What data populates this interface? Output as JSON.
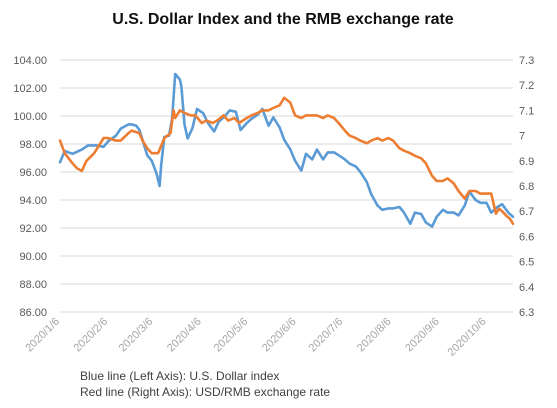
{
  "chart_data": {
    "type": "line",
    "title": "U.S. Dollar Index and the RMB exchange rate",
    "left_axis": {
      "min": 86,
      "max": 104,
      "step": 2,
      "tick_labels": [
        "86.00",
        "88.00",
        "90.00",
        "92.00",
        "94.00",
        "96.00",
        "98.00",
        "100.00",
        "102.00",
        "104.00"
      ]
    },
    "right_axis": {
      "min": 6.3,
      "max": 7.3,
      "step": 0.1,
      "tick_labels": [
        "6.3",
        "6.4",
        "6.5",
        "6.6",
        "6.7",
        "6.8",
        "6.9",
        "7",
        "7.1",
        "7.2",
        "7.3"
      ]
    },
    "x_axis": {
      "start": "2020-01-06",
      "end": "2020-10-23",
      "tick_dates": [
        "2020-01-06",
        "2020-02-06",
        "2020-03-06",
        "2020-04-06",
        "2020-05-06",
        "2020-06-06",
        "2020-07-06",
        "2020-08-06",
        "2020-09-06",
        "2020-10-06"
      ],
      "tick_labels": [
        "2020/1/6",
        "2020/2/6",
        "2020/3/6",
        "2020/4/6",
        "2020/5/6",
        "2020/6/6",
        "2020/7/6",
        "2020/8/6",
        "2020/9/6",
        "2020/10/6"
      ]
    },
    "grid": true,
    "series": [
      {
        "axis": "left",
        "color": "#5b9bd5",
        "points": [
          [
            "2020-01-06",
            96.7
          ],
          [
            "2020-01-09",
            97.5
          ],
          [
            "2020-01-14",
            97.3
          ],
          [
            "2020-01-20",
            97.6
          ],
          [
            "2020-01-24",
            97.9
          ],
          [
            "2020-01-29",
            97.9
          ],
          [
            "2020-02-03",
            97.8
          ],
          [
            "2020-02-06",
            98.2
          ],
          [
            "2020-02-11",
            98.6
          ],
          [
            "2020-02-14",
            99.1
          ],
          [
            "2020-02-19",
            99.4
          ],
          [
            "2020-02-21",
            99.4
          ],
          [
            "2020-02-24",
            99.3
          ],
          [
            "2020-02-26",
            99.0
          ],
          [
            "2020-02-28",
            98.3
          ],
          [
            "2020-03-02",
            97.2
          ],
          [
            "2020-03-05",
            96.8
          ],
          [
            "2020-03-08",
            95.9
          ],
          [
            "2020-03-10",
            95.0
          ],
          [
            "2020-03-11",
            96.5
          ],
          [
            "2020-03-13",
            98.5
          ],
          [
            "2020-03-16",
            98.6
          ],
          [
            "2020-03-18",
            99.8
          ],
          [
            "2020-03-20",
            103.0
          ],
          [
            "2020-03-23",
            102.6
          ],
          [
            "2020-03-24",
            102.1
          ],
          [
            "2020-03-26",
            99.4
          ],
          [
            "2020-03-28",
            98.4
          ],
          [
            "2020-03-31",
            99.1
          ],
          [
            "2020-04-03",
            100.5
          ],
          [
            "2020-04-07",
            100.2
          ],
          [
            "2020-04-10",
            99.5
          ],
          [
            "2020-04-14",
            98.9
          ],
          [
            "2020-04-17",
            99.6
          ],
          [
            "2020-04-21",
            100.0
          ],
          [
            "2020-04-24",
            100.4
          ],
          [
            "2020-04-28",
            100.3
          ],
          [
            "2020-05-01",
            99.0
          ],
          [
            "2020-05-05",
            99.5
          ],
          [
            "2020-05-08",
            99.8
          ],
          [
            "2020-05-12",
            100.1
          ],
          [
            "2020-05-15",
            100.5
          ],
          [
            "2020-05-19",
            99.3
          ],
          [
            "2020-05-22",
            99.9
          ],
          [
            "2020-05-26",
            99.2
          ],
          [
            "2020-05-29",
            98.3
          ],
          [
            "2020-06-02",
            97.6
          ],
          [
            "2020-06-05",
            96.8
          ],
          [
            "2020-06-09",
            96.1
          ],
          [
            "2020-06-12",
            97.3
          ],
          [
            "2020-06-16",
            96.9
          ],
          [
            "2020-06-19",
            97.6
          ],
          [
            "2020-06-23",
            96.9
          ],
          [
            "2020-06-26",
            97.4
          ],
          [
            "2020-06-30",
            97.4
          ],
          [
            "2020-07-03",
            97.2
          ],
          [
            "2020-07-07",
            96.9
          ],
          [
            "2020-07-10",
            96.6
          ],
          [
            "2020-07-14",
            96.4
          ],
          [
            "2020-07-17",
            96.0
          ],
          [
            "2020-07-21",
            95.3
          ],
          [
            "2020-07-24",
            94.4
          ],
          [
            "2020-07-28",
            93.6
          ],
          [
            "2020-07-31",
            93.3
          ],
          [
            "2020-08-04",
            93.4
          ],
          [
            "2020-08-07",
            93.4
          ],
          [
            "2020-08-11",
            93.5
          ],
          [
            "2020-08-14",
            93.1
          ],
          [
            "2020-08-18",
            92.3
          ],
          [
            "2020-08-21",
            93.1
          ],
          [
            "2020-08-25",
            93.0
          ],
          [
            "2020-08-28",
            92.4
          ],
          [
            "2020-09-01",
            92.1
          ],
          [
            "2020-09-04",
            92.8
          ],
          [
            "2020-09-08",
            93.3
          ],
          [
            "2020-09-11",
            93.1
          ],
          [
            "2020-09-15",
            93.1
          ],
          [
            "2020-09-18",
            92.9
          ],
          [
            "2020-09-22",
            93.6
          ],
          [
            "2020-09-25",
            94.6
          ],
          [
            "2020-09-29",
            94.0
          ],
          [
            "2020-10-02",
            93.8
          ],
          [
            "2020-10-06",
            93.8
          ],
          [
            "2020-10-09",
            93.1
          ],
          [
            "2020-10-13",
            93.5
          ],
          [
            "2020-10-16",
            93.7
          ],
          [
            "2020-10-20",
            93.1
          ],
          [
            "2020-10-23",
            92.8
          ]
        ]
      },
      {
        "axis": "right",
        "color": "#ed7d31",
        "points": [
          [
            "2020-01-06",
            6.98
          ],
          [
            "2020-01-09",
            6.93
          ],
          [
            "2020-01-14",
            6.89
          ],
          [
            "2020-01-17",
            6.87
          ],
          [
            "2020-01-20",
            6.86
          ],
          [
            "2020-01-23",
            6.9
          ],
          [
            "2020-01-28",
            6.93
          ],
          [
            "2020-02-03",
            6.99
          ],
          [
            "2020-02-06",
            6.99
          ],
          [
            "2020-02-11",
            6.98
          ],
          [
            "2020-02-14",
            6.98
          ],
          [
            "2020-02-19",
            7.01
          ],
          [
            "2020-02-21",
            7.02
          ],
          [
            "2020-02-26",
            7.01
          ],
          [
            "2020-02-28",
            6.98
          ],
          [
            "2020-03-02",
            6.95
          ],
          [
            "2020-03-05",
            6.93
          ],
          [
            "2020-03-09",
            6.93
          ],
          [
            "2020-03-13",
            6.99
          ],
          [
            "2020-03-17",
            7.01
          ],
          [
            "2020-03-19",
            7.1
          ],
          [
            "2020-03-20",
            7.07
          ],
          [
            "2020-03-23",
            7.1
          ],
          [
            "2020-03-26",
            7.09
          ],
          [
            "2020-03-30",
            7.08
          ],
          [
            "2020-04-02",
            7.08
          ],
          [
            "2020-04-06",
            7.05
          ],
          [
            "2020-04-09",
            7.06
          ],
          [
            "2020-04-13",
            7.05
          ],
          [
            "2020-04-16",
            7.06
          ],
          [
            "2020-04-20",
            7.08
          ],
          [
            "2020-04-23",
            7.06
          ],
          [
            "2020-04-27",
            7.07
          ],
          [
            "2020-04-30",
            7.05
          ],
          [
            "2020-05-05",
            7.07
          ],
          [
            "2020-05-08",
            7.08
          ],
          [
            "2020-05-12",
            7.09
          ],
          [
            "2020-05-15",
            7.1
          ],
          [
            "2020-05-19",
            7.1
          ],
          [
            "2020-05-22",
            7.11
          ],
          [
            "2020-05-26",
            7.12
          ],
          [
            "2020-05-29",
            7.15
          ],
          [
            "2020-06-02",
            7.13
          ],
          [
            "2020-06-05",
            7.08
          ],
          [
            "2020-06-09",
            7.07
          ],
          [
            "2020-06-12",
            7.08
          ],
          [
            "2020-06-16",
            7.08
          ],
          [
            "2020-06-19",
            7.08
          ],
          [
            "2020-06-23",
            7.07
          ],
          [
            "2020-06-26",
            7.08
          ],
          [
            "2020-06-30",
            7.07
          ],
          [
            "2020-07-03",
            7.05
          ],
          [
            "2020-07-07",
            7.02
          ],
          [
            "2020-07-10",
            7.0
          ],
          [
            "2020-07-14",
            6.99
          ],
          [
            "2020-07-17",
            6.98
          ],
          [
            "2020-07-21",
            6.97
          ],
          [
            "2020-07-24",
            6.98
          ],
          [
            "2020-07-28",
            6.99
          ],
          [
            "2020-07-31",
            6.98
          ],
          [
            "2020-08-04",
            6.99
          ],
          [
            "2020-08-07",
            6.98
          ],
          [
            "2020-08-11",
            6.95
          ],
          [
            "2020-08-14",
            6.94
          ],
          [
            "2020-08-18",
            6.93
          ],
          [
            "2020-08-21",
            6.92
          ],
          [
            "2020-08-25",
            6.91
          ],
          [
            "2020-08-28",
            6.89
          ],
          [
            "2020-09-01",
            6.84
          ],
          [
            "2020-09-04",
            6.82
          ],
          [
            "2020-09-08",
            6.82
          ],
          [
            "2020-09-11",
            6.83
          ],
          [
            "2020-09-15",
            6.81
          ],
          [
            "2020-09-18",
            6.78
          ],
          [
            "2020-09-22",
            6.75
          ],
          [
            "2020-09-25",
            6.78
          ],
          [
            "2020-09-29",
            6.78
          ],
          [
            "2020-10-02",
            6.77
          ],
          [
            "2020-10-06",
            6.77
          ],
          [
            "2020-10-09",
            6.77
          ],
          [
            "2020-10-12",
            6.69
          ],
          [
            "2020-10-14",
            6.71
          ],
          [
            "2020-10-16",
            6.7
          ],
          [
            "2020-10-19",
            6.68
          ],
          [
            "2020-10-21",
            6.67
          ],
          [
            "2020-10-23",
            6.65
          ]
        ]
      }
    ]
  },
  "notes": {
    "line1": "Blue line (Left Axis): U.S. Dollar index",
    "line2": "Red line (Right Axis): USD/RMB exchange rate"
  }
}
